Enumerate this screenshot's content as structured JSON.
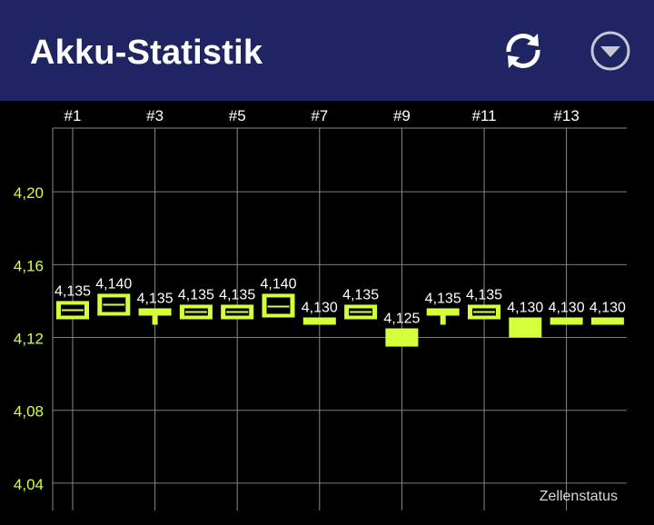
{
  "app_bar": {
    "title": "Akku-Statistik",
    "refresh_icon": "refresh-icon",
    "menu_icon": "dropdown-circle-icon",
    "background": "#1f2462"
  },
  "chart_data": {
    "type": "candlestick",
    "caption": "Zellenstatus",
    "x_ticks": [
      "#1",
      "#3",
      "#5",
      "#7",
      "#9",
      "#11",
      "#13"
    ],
    "y_ticks": [
      "4,20",
      "4,16",
      "4,12",
      "4,08",
      "4,04"
    ],
    "y_tick_values": [
      4.2,
      4.16,
      4.12,
      4.08,
      4.04
    ],
    "ylim": [
      4.025,
      4.235
    ],
    "grid": true,
    "accent_color": "#d4ff3a",
    "cells": [
      {
        "label": "4,135",
        "low": 4.13,
        "high": 4.14,
        "mid": 4.135,
        "style": "box"
      },
      {
        "label": "4,140",
        "low": 4.132,
        "high": 4.144,
        "mid": 4.138,
        "style": "box"
      },
      {
        "label": "4,135",
        "low": 4.132,
        "high": 4.136,
        "mid": null,
        "style": "t",
        "tail": 4.127
      },
      {
        "label": "4,135",
        "low": 4.13,
        "high": 4.138,
        "mid": 4.134,
        "style": "box"
      },
      {
        "label": "4,135",
        "low": 4.13,
        "high": 4.138,
        "mid": 4.134,
        "style": "box"
      },
      {
        "label": "4,140",
        "low": 4.131,
        "high": 4.144,
        "mid": 4.137,
        "style": "box"
      },
      {
        "label": "4,130",
        "low": 4.127,
        "high": 4.131,
        "mid": null,
        "style": "solid"
      },
      {
        "label": "4,135",
        "low": 4.13,
        "high": 4.138,
        "mid": 4.134,
        "style": "box"
      },
      {
        "label": "4,125",
        "low": 4.115,
        "high": 4.125,
        "mid": null,
        "style": "solid"
      },
      {
        "label": "4,135",
        "low": 4.132,
        "high": 4.136,
        "mid": null,
        "style": "t",
        "tail": 4.127
      },
      {
        "label": "4,135",
        "low": 4.13,
        "high": 4.138,
        "mid": 4.134,
        "style": "box"
      },
      {
        "label": "4,130",
        "low": 4.12,
        "high": 4.131,
        "mid": null,
        "style": "solid"
      },
      {
        "label": "4,130",
        "low": 4.127,
        "high": 4.131,
        "mid": null,
        "style": "solid"
      },
      {
        "label": "4,130",
        "low": 4.127,
        "high": 4.131,
        "mid": null,
        "style": "solid"
      }
    ]
  }
}
